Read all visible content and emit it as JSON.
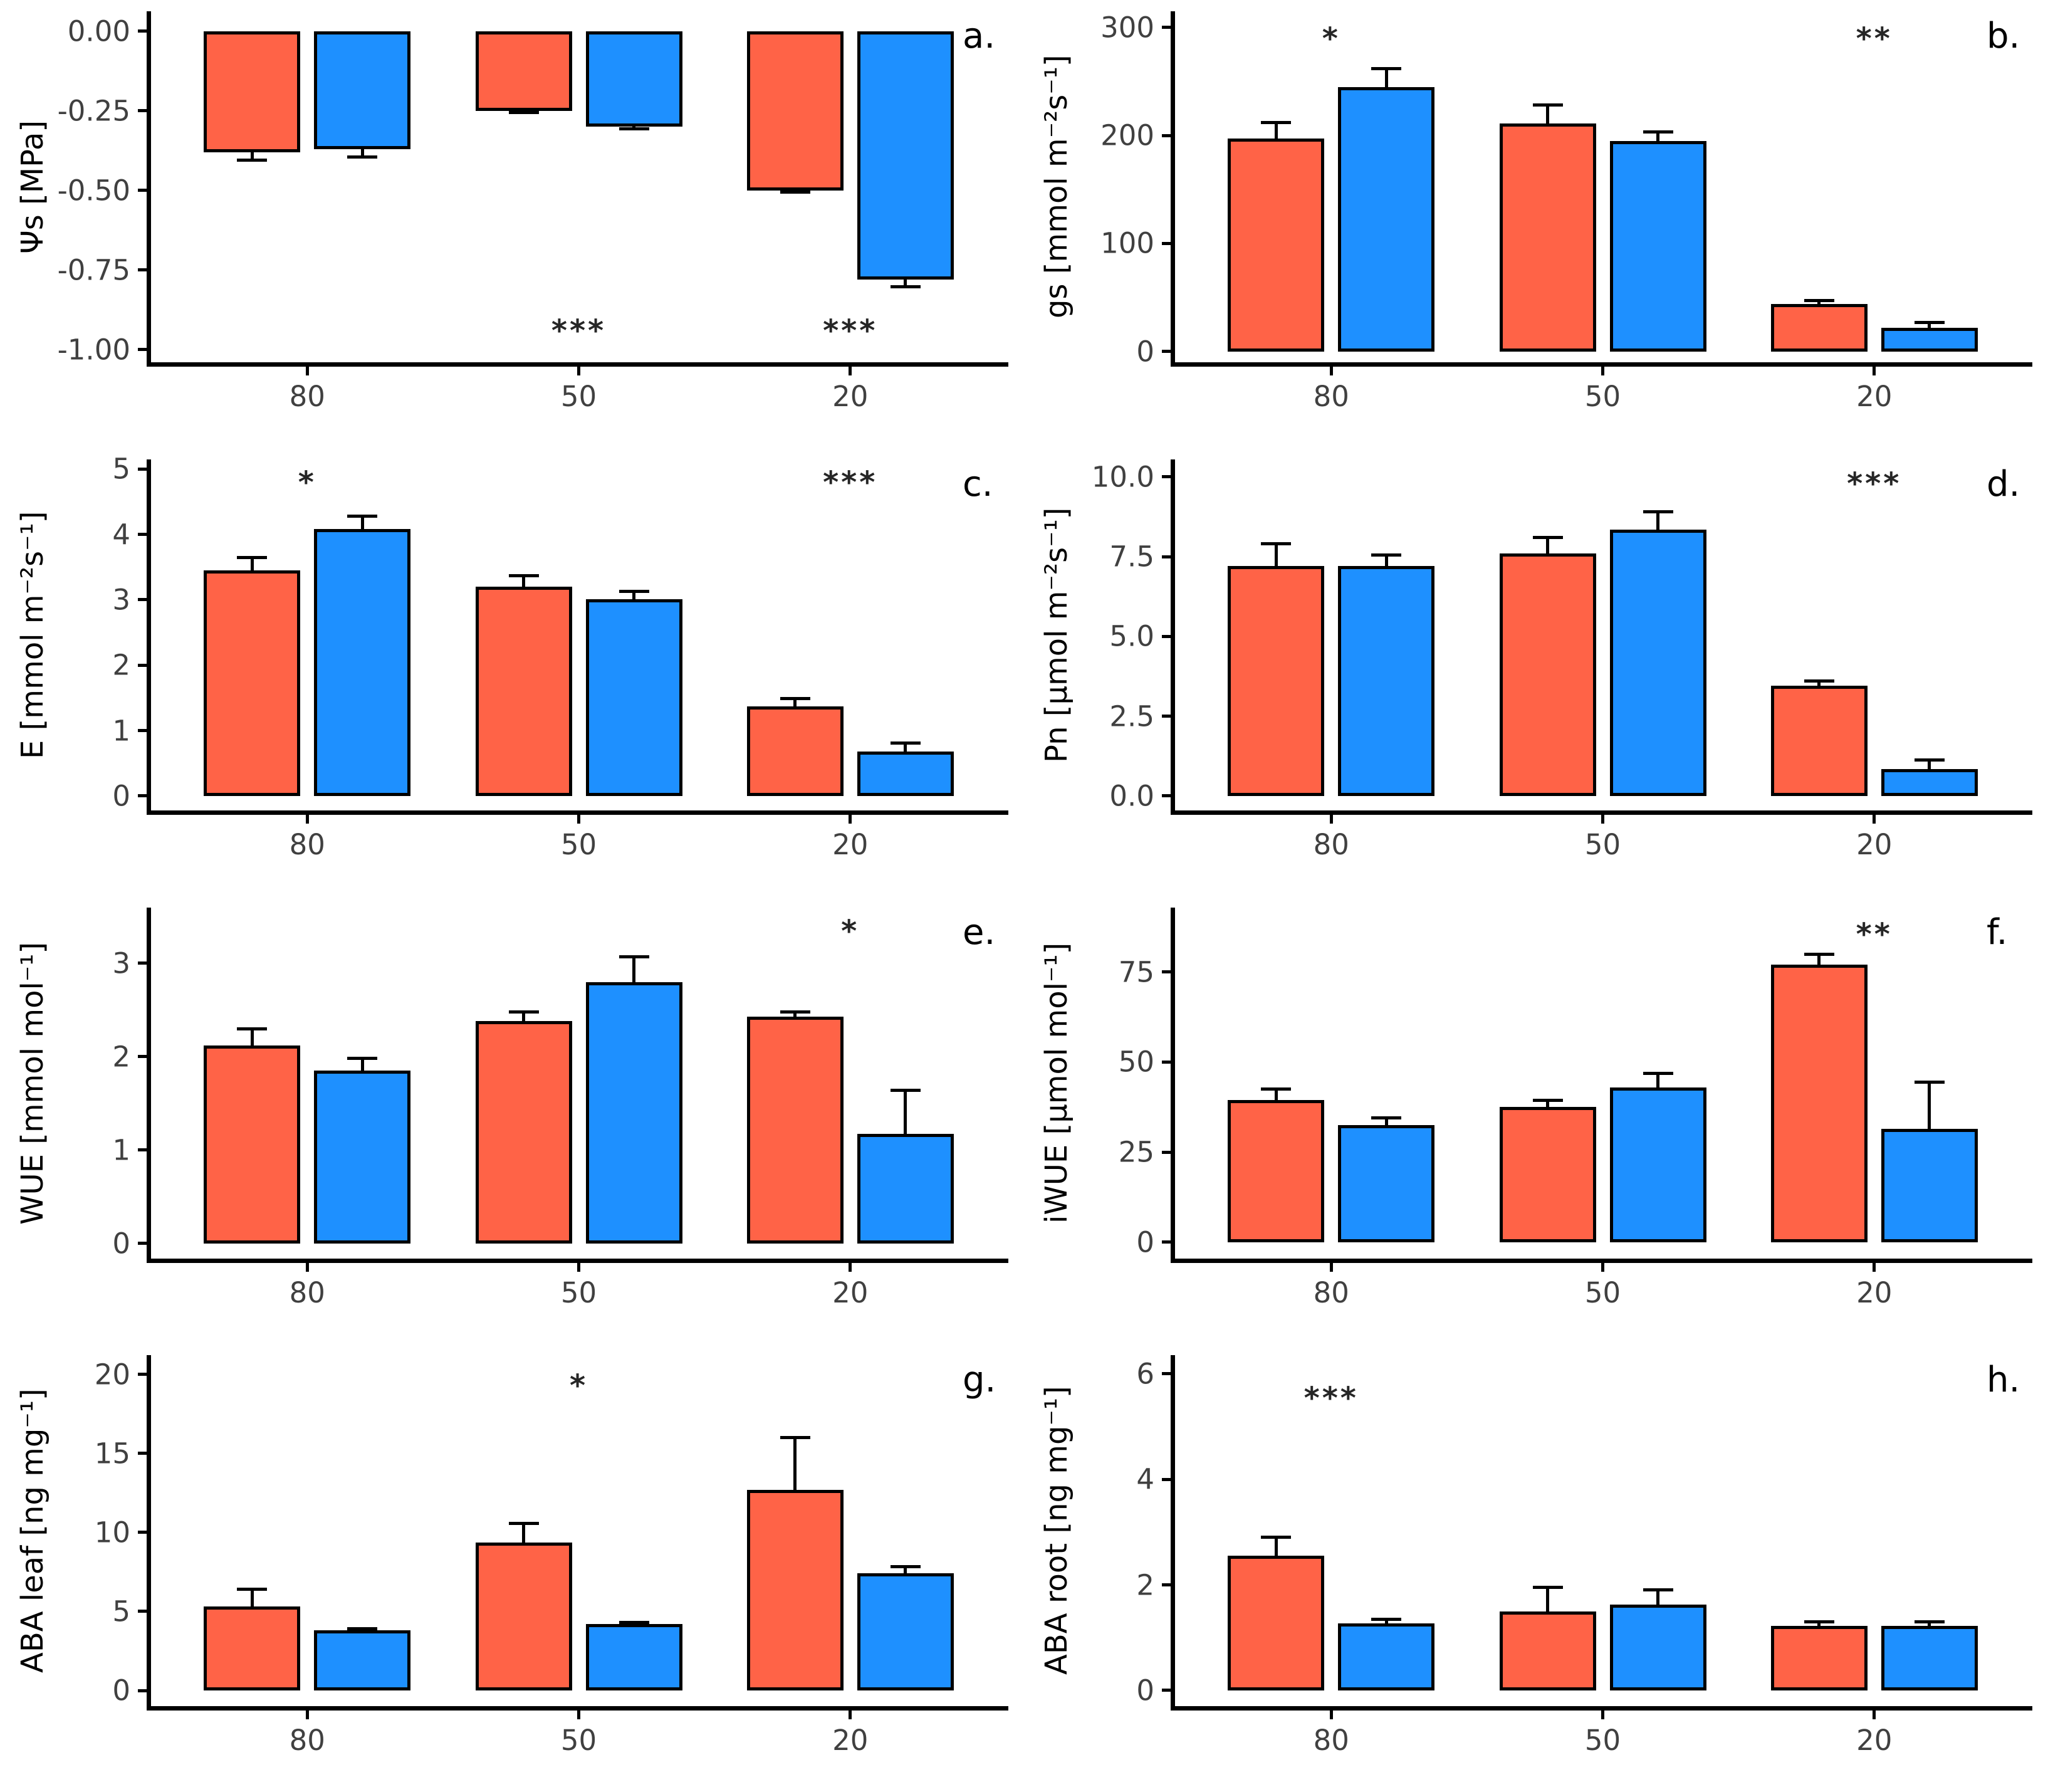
{
  "figure": {
    "background": "#ffffff",
    "x_axis_categories": [
      "80",
      "50",
      "20"
    ],
    "series_colors": {
      "red": "#FF6347",
      "blue": "#1E90FF"
    },
    "axis_text_color": "#404040",
    "axis_line_color": "#000000"
  },
  "chart_data": [
    {
      "type": "bar",
      "panel_label": "a.",
      "ylabel": "Ψs [MPa]",
      "xlabel": "",
      "categories": [
        "80",
        "50",
        "20"
      ],
      "series": [
        {
          "name": "red",
          "color": "#FF6347",
          "values": [
            -0.38,
            -0.25,
            -0.5
          ],
          "errors": [
            0.025,
            0.006,
            0.006
          ]
        },
        {
          "name": "blue",
          "color": "#1E90FF",
          "values": [
            -0.37,
            -0.3,
            -0.78
          ],
          "errors": [
            0.025,
            0.006,
            0.022
          ]
        }
      ],
      "ylim": [
        -1.04,
        0.063
      ],
      "yticks": [
        {
          "v": 0,
          "label": "0.00"
        },
        {
          "v": -0.25,
          "label": "-0.25"
        },
        {
          "v": -0.5,
          "label": "-0.50"
        },
        {
          "v": -0.75,
          "label": "-0.75"
        },
        {
          "v": -1,
          "label": "-1.00"
        }
      ],
      "grid": false,
      "significance": [
        {
          "category": "50",
          "label": "***",
          "y": -0.93
        },
        {
          "category": "20",
          "label": "***",
          "y": -0.93
        }
      ]
    },
    {
      "type": "bar",
      "panel_label": "b.",
      "ylabel": "gs [mmol m⁻²s⁻¹]",
      "xlabel": "",
      "categories": [
        "80",
        "50",
        "20"
      ],
      "series": [
        {
          "name": "red",
          "color": "#FF6347",
          "values": [
            197,
            211,
            44
          ],
          "errors": [
            15,
            17,
            3
          ]
        },
        {
          "name": "blue",
          "color": "#1E90FF",
          "values": [
            245,
            195,
            22
          ],
          "errors": [
            17,
            8,
            5
          ]
        }
      ],
      "ylim": [
        -10,
        315
      ],
      "yticks": [
        {
          "v": 300,
          "label": "300"
        },
        {
          "v": 200,
          "label": "200"
        },
        {
          "v": 100,
          "label": "100"
        },
        {
          "v": 0,
          "label": "0"
        }
      ],
      "grid": false,
      "significance": [
        {
          "category": "80",
          "label": "*",
          "y": 293
        },
        {
          "category": "20",
          "label": "**",
          "y": 293
        }
      ]
    },
    {
      "type": "bar",
      "panel_label": "c.",
      "ylabel": "E [mmol m⁻²s⁻¹]",
      "xlabel": "",
      "categories": [
        "80",
        "50",
        "20"
      ],
      "series": [
        {
          "name": "red",
          "color": "#FF6347",
          "values": [
            3.45,
            3.2,
            1.37
          ],
          "errors": [
            0.2,
            0.17,
            0.12
          ]
        },
        {
          "name": "blue",
          "color": "#1E90FF",
          "values": [
            4.08,
            3.01,
            0.68
          ],
          "errors": [
            0.2,
            0.12,
            0.13
          ]
        }
      ],
      "ylim": [
        -0.22,
        5.15
      ],
      "yticks": [
        {
          "v": 5,
          "label": "5"
        },
        {
          "v": 4,
          "label": "4"
        },
        {
          "v": 3,
          "label": "3"
        },
        {
          "v": 2,
          "label": "2"
        },
        {
          "v": 1,
          "label": "1"
        },
        {
          "v": 0,
          "label": "0"
        }
      ],
      "grid": false,
      "significance": [
        {
          "category": "80",
          "label": "*",
          "y": 4.85
        },
        {
          "category": "20",
          "label": "***",
          "y": 4.85
        }
      ]
    },
    {
      "type": "bar",
      "panel_label": "d.",
      "ylabel": "Pn [μmol m⁻²s⁻¹]",
      "xlabel": "",
      "categories": [
        "80",
        "50",
        "20"
      ],
      "series": [
        {
          "name": "red",
          "color": "#FF6347",
          "values": [
            7.2,
            7.6,
            3.45
          ],
          "errors": [
            0.7,
            0.5,
            0.15
          ]
        },
        {
          "name": "blue",
          "color": "#1E90FF",
          "values": [
            7.2,
            8.35,
            0.85
          ],
          "errors": [
            0.35,
            0.55,
            0.27
          ]
        }
      ],
      "ylim": [
        -0.45,
        10.55
      ],
      "yticks": [
        {
          "v": 10,
          "label": "10.0"
        },
        {
          "v": 7.5,
          "label": "7.5"
        },
        {
          "v": 5,
          "label": "5.0"
        },
        {
          "v": 2.5,
          "label": "2.5"
        },
        {
          "v": 0,
          "label": "0.0"
        }
      ],
      "grid": false,
      "significance": [
        {
          "category": "20",
          "label": "***",
          "y": 9.9
        }
      ]
    },
    {
      "type": "bar",
      "panel_label": "e.",
      "ylabel": "WUE [mmol mol⁻¹]",
      "xlabel": "",
      "categories": [
        "80",
        "50",
        "20"
      ],
      "series": [
        {
          "name": "red",
          "color": "#FF6347",
          "values": [
            2.12,
            2.38,
            2.43
          ],
          "errors": [
            0.18,
            0.1,
            0.05
          ]
        },
        {
          "name": "blue",
          "color": "#1E90FF",
          "values": [
            1.85,
            2.8,
            1.17
          ],
          "errors": [
            0.13,
            0.27,
            0.47
          ]
        }
      ],
      "ylim": [
        -0.16,
        3.6
      ],
      "yticks": [
        {
          "v": 3,
          "label": "3"
        },
        {
          "v": 2,
          "label": "2"
        },
        {
          "v": 1,
          "label": "1"
        },
        {
          "v": 0,
          "label": "0"
        }
      ],
      "grid": false,
      "significance": [
        {
          "category": "20",
          "label": "*",
          "y": 3.38
        }
      ]
    },
    {
      "type": "bar",
      "panel_label": "f.",
      "ylabel": "iWUE [μmol mol⁻¹]",
      "xlabel": "",
      "categories": [
        "80",
        "50",
        "20"
      ],
      "series": [
        {
          "name": "red",
          "color": "#FF6347",
          "values": [
            39.5,
            37.5,
            77.0
          ],
          "errors": [
            3.0,
            1.8,
            3.0
          ]
        },
        {
          "name": "blue",
          "color": "#1E90FF",
          "values": [
            32.5,
            43.0,
            31.5
          ],
          "errors": [
            2.0,
            3.8,
            13.0
          ]
        }
      ],
      "ylim": [
        -4.5,
        93
      ],
      "yticks": [
        {
          "v": 75,
          "label": "75"
        },
        {
          "v": 50,
          "label": "50"
        },
        {
          "v": 25,
          "label": "25"
        },
        {
          "v": 0,
          "label": "0"
        }
      ],
      "grid": false,
      "significance": [
        {
          "category": "20",
          "label": "**",
          "y": 86.5
        }
      ]
    },
    {
      "type": "bar",
      "panel_label": "g.",
      "ylabel": "ABA leaf [ng mg⁻¹]",
      "xlabel": "",
      "categories": [
        "80",
        "50",
        "20"
      ],
      "series": [
        {
          "name": "red",
          "color": "#FF6347",
          "values": [
            5.3,
            9.35,
            12.7
          ],
          "errors": [
            1.1,
            1.2,
            3.3
          ]
        },
        {
          "name": "blue",
          "color": "#1E90FF",
          "values": [
            3.8,
            4.2,
            7.4
          ],
          "errors": [
            0.12,
            0.12,
            0.45
          ]
        }
      ],
      "ylim": [
        -1.0,
        21.2
      ],
      "yticks": [
        {
          "v": 20,
          "label": "20"
        },
        {
          "v": 15,
          "label": "15"
        },
        {
          "v": 10,
          "label": "10"
        },
        {
          "v": 5,
          "label": "5"
        },
        {
          "v": 0,
          "label": "0"
        }
      ],
      "grid": false,
      "significance": [
        {
          "category": "50",
          "label": "*",
          "y": 19.5
        }
      ]
    },
    {
      "type": "bar",
      "panel_label": "h.",
      "ylabel": "ABA root [ng mg⁻¹]",
      "xlabel": "",
      "categories": [
        "80",
        "50",
        "20"
      ],
      "series": [
        {
          "name": "red",
          "color": "#FF6347",
          "values": [
            2.55,
            1.5,
            1.22
          ],
          "errors": [
            0.35,
            0.45,
            0.08
          ]
        },
        {
          "name": "blue",
          "color": "#1E90FF",
          "values": [
            1.27,
            1.63,
            1.22
          ],
          "errors": [
            0.08,
            0.28,
            0.08
          ]
        }
      ],
      "ylim": [
        -0.3,
        6.35
      ],
      "yticks": [
        {
          "v": 6,
          "label": "6"
        },
        {
          "v": 4,
          "label": "4"
        },
        {
          "v": 2,
          "label": "2"
        },
        {
          "v": 0,
          "label": "0"
        }
      ],
      "grid": false,
      "significance": [
        {
          "category": "80",
          "label": "***",
          "y": 5.6
        }
      ]
    }
  ]
}
